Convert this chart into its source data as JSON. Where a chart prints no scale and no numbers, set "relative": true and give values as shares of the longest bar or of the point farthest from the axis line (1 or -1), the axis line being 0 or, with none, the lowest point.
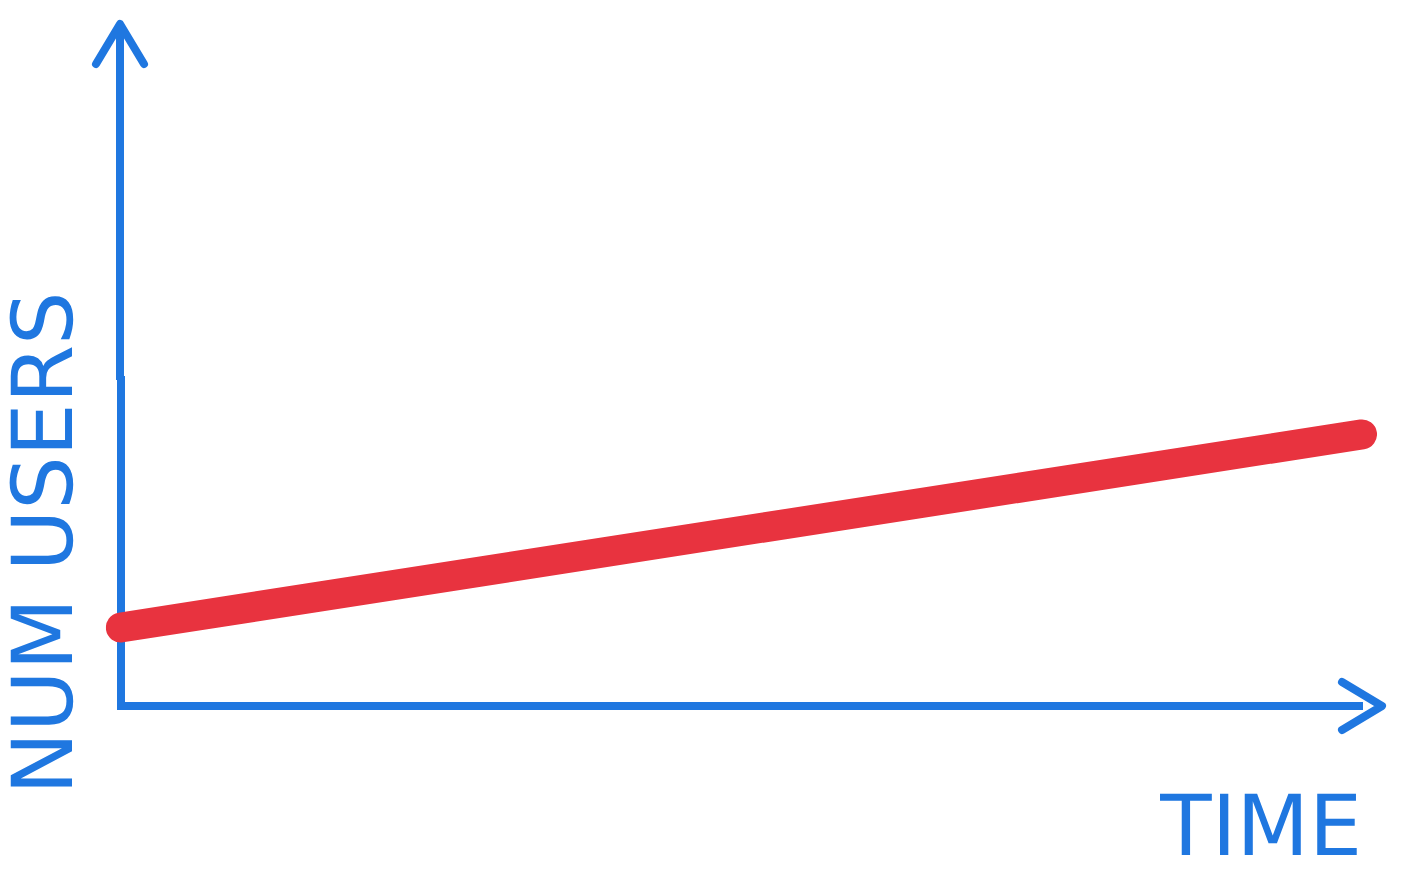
{
  "chart_data": {
    "type": "line",
    "relative": true,
    "xlabel": "TIME",
    "ylabel": "NUM USERS",
    "categories": [
      null,
      null
    ],
    "series": [
      {
        "color": "#e8333f",
        "values": [
          0.29,
          1
        ]
      }
    ],
    "grid": false,
    "legend": false,
    "marker": "none",
    "line_style": "solid"
  }
}
